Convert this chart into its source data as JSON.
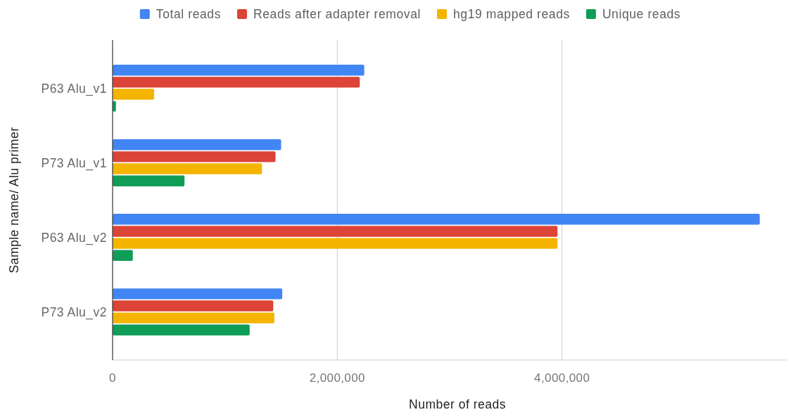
{
  "chart_data": {
    "type": "bar",
    "orientation": "horizontal",
    "categories": [
      "P63 Alu_v1",
      "P73 Alu_v1",
      "P63 Alu_v2",
      "P73 Alu_v2"
    ],
    "series": [
      {
        "name": "Total reads",
        "color": "#4285f4",
        "values": [
          2240000,
          1500000,
          5760000,
          1510000
        ]
      },
      {
        "name": "Reads after adapter removal",
        "color": "#db4437",
        "values": [
          2200000,
          1450000,
          3960000,
          1430000
        ]
      },
      {
        "name": "hg19 mapped reads",
        "color": "#f4b400",
        "values": [
          370000,
          1330000,
          3960000,
          1440000
        ]
      },
      {
        "name": "Unique reads",
        "color": "#0f9d58",
        "values": [
          30000,
          640000,
          180000,
          1220000
        ]
      }
    ],
    "xlim": [
      0,
      6000000
    ],
    "xticks": [
      {
        "value": 0,
        "label": "0"
      },
      {
        "value": 2000000,
        "label": "2,000,000"
      },
      {
        "value": 4000000,
        "label": "4,000,000"
      }
    ],
    "xlabel": "Number of reads",
    "ylabel": "Sample name/ Alu primer",
    "grid": "x",
    "legend": "top"
  }
}
